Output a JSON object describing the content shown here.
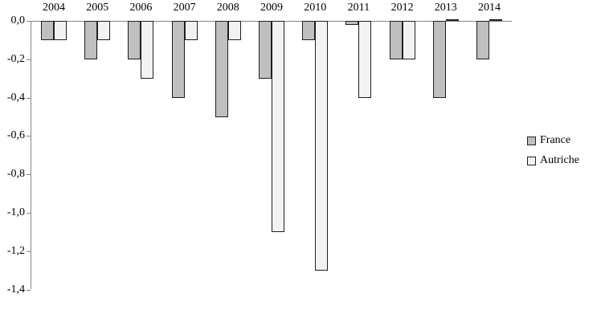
{
  "chart_data": {
    "type": "bar",
    "title": "",
    "xlabel": "",
    "ylabel": "",
    "categories": [
      "2004",
      "2005",
      "2006",
      "2007",
      "2008",
      "2009",
      "2010",
      "2011",
      "2012",
      "2013",
      "2014"
    ],
    "series": [
      {
        "name": "France",
        "color": "#bfbfbf",
        "values": [
          -0.1,
          -0.2,
          -0.2,
          -0.4,
          -0.5,
          -0.3,
          -0.1,
          -0.02,
          -0.2,
          -0.4,
          -0.2
        ]
      },
      {
        "name": "Autriche",
        "color": "#f2f2f2",
        "values": [
          -0.1,
          -0.1,
          -0.3,
          -0.1,
          -0.1,
          -1.1,
          -1.3,
          -0.4,
          -0.2,
          0.01,
          0.01
        ]
      }
    ],
    "ylim": [
      -1.4,
      0.0
    ],
    "ytick_step": 0.2,
    "ytick_labels": [
      "0,0",
      "-0,2",
      "-0,4",
      "-0,6",
      "-0,8",
      "-1,0",
      "-1,2",
      "-1,4"
    ],
    "decimal_separator": ",",
    "grid": false,
    "legend_position": "right",
    "axis_color": "#868686",
    "bar_border_color": "#1f1f1f"
  }
}
